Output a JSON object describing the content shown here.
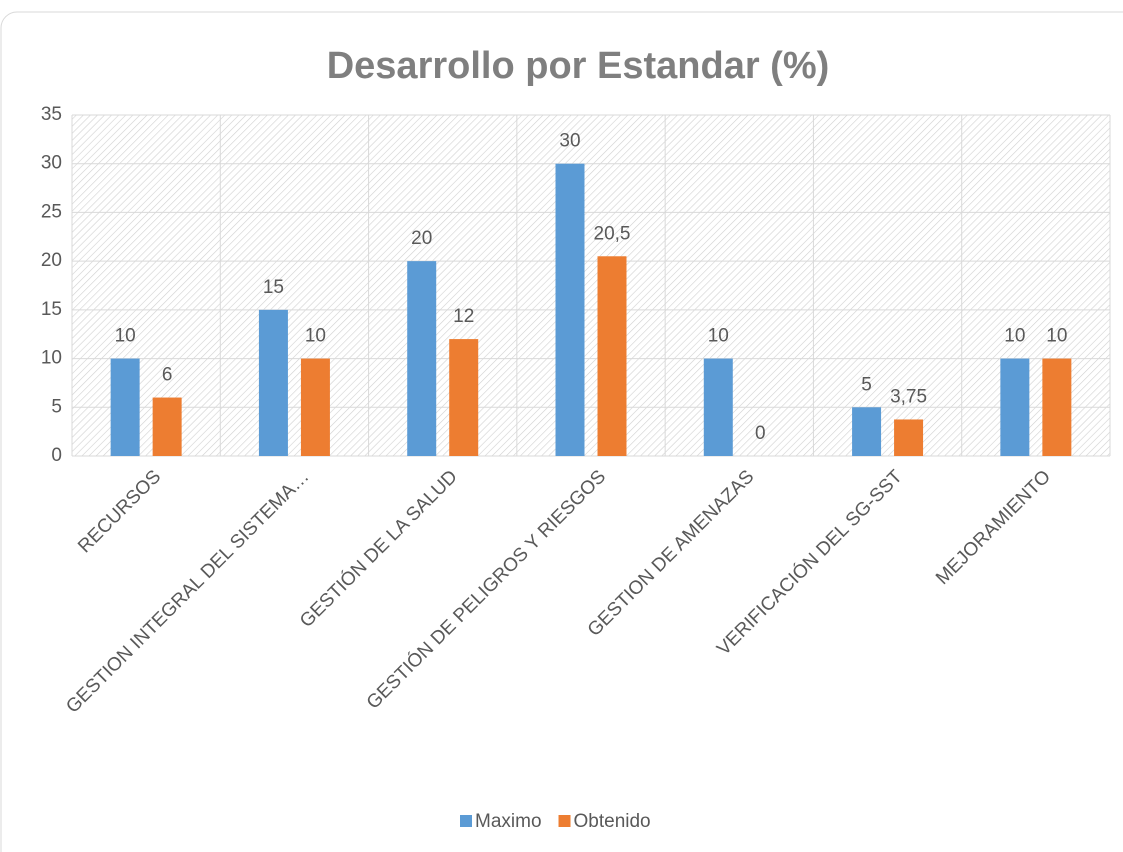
{
  "chart_data": {
    "type": "bar",
    "title": "Desarrollo por Estandar (%)",
    "categories": [
      "RECURSOS",
      "GESTION INTEGRAL DEL SISTEMA…",
      "GESTIÓN DE LA SALUD",
      "GESTIÓN DE PELIGROS Y RIESGOS",
      "GESTION DE AMENAZAS",
      "VERIFICACIÓN DEL SG-SST",
      "MEJORAMIENTO"
    ],
    "series": [
      {
        "name": "Maximo",
        "color": "#5b9bd5",
        "values": [
          10,
          15,
          20,
          30,
          10,
          5,
          10
        ]
      },
      {
        "name": "Obtenido",
        "color": "#ed7d31",
        "values": [
          6,
          10,
          12,
          20.5,
          0,
          3.75,
          10
        ],
        "value_labels": [
          "6",
          "10",
          "12",
          "20,5",
          "0",
          "3,75",
          "10"
        ]
      }
    ],
    "ylim": [
      0,
      35
    ],
    "yticks": [
      0,
      5,
      10,
      15,
      20,
      25,
      30,
      35
    ],
    "grid": true,
    "legend": "bottom"
  }
}
